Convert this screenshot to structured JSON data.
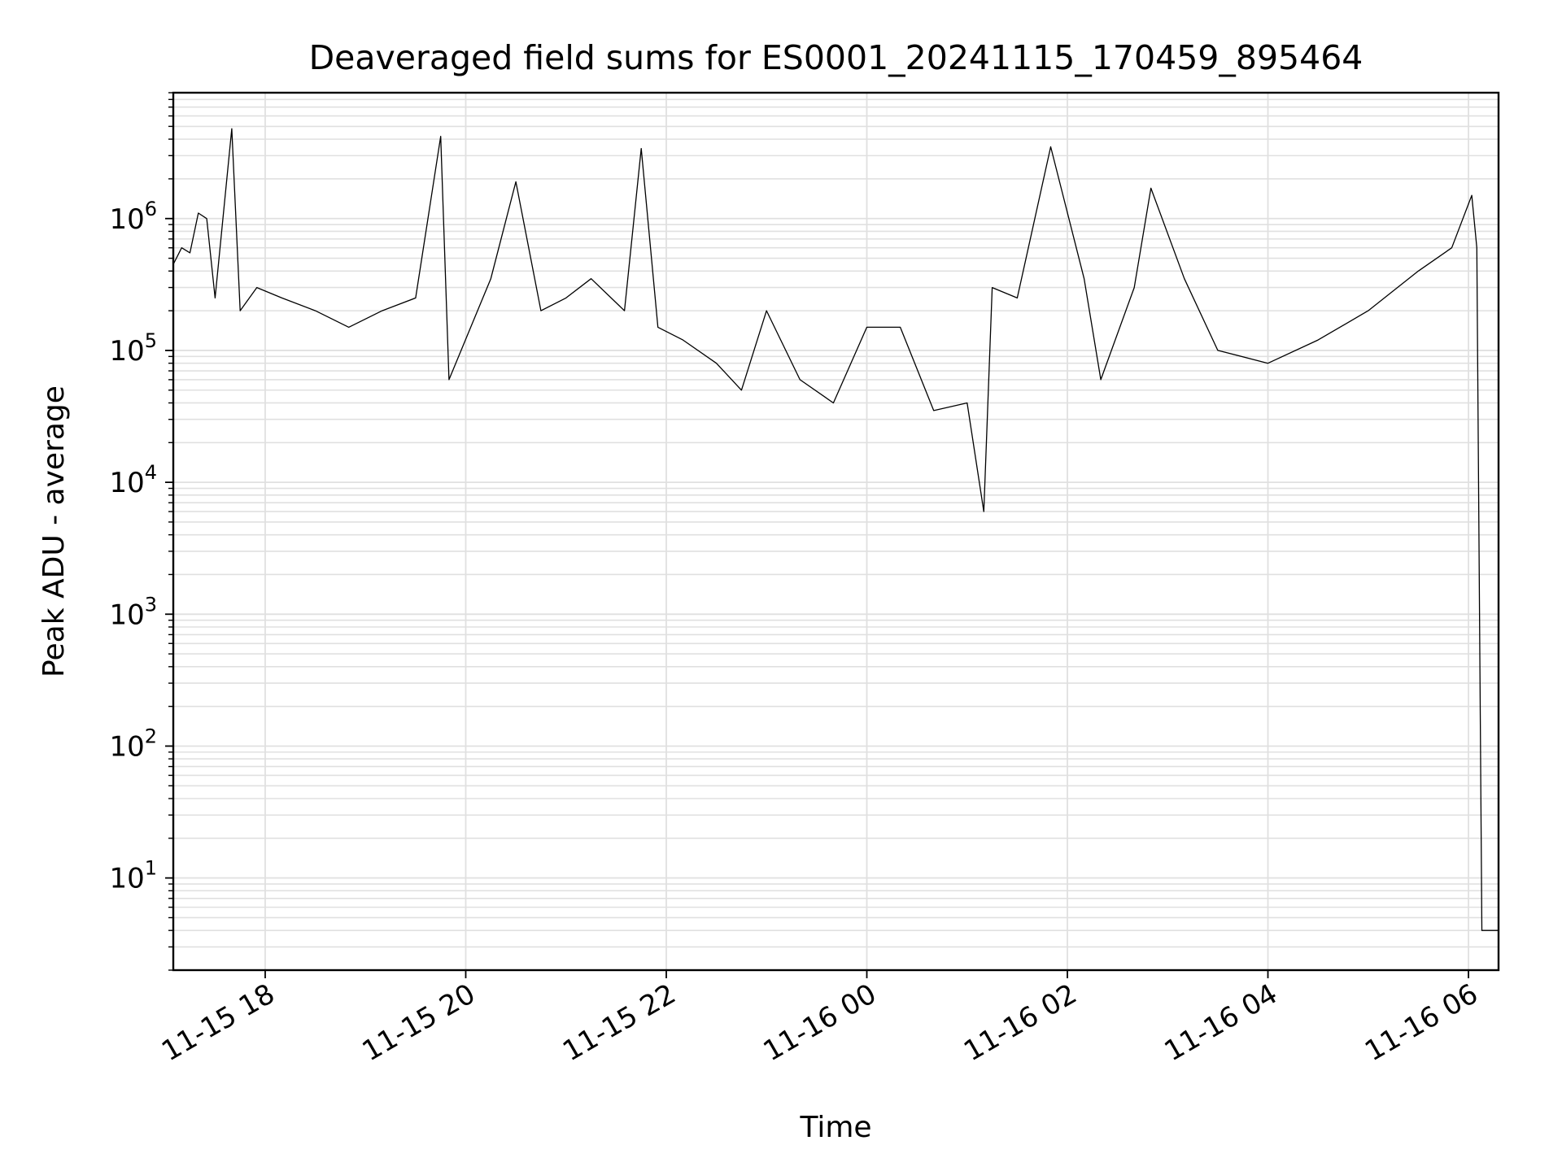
{
  "chart_data": {
    "type": "line",
    "title": "Deaveraged field sums for ES0001_20241115_170459_895464",
    "xlabel": "Time",
    "ylabel": "Peak ADU - average",
    "yscale": "log",
    "ylim": [
      2,
      9000000
    ],
    "xlim": [
      "2024-11-15 17:05",
      "2024-11-16 06:18"
    ],
    "grid": true,
    "grid_minor": true,
    "line_color": "#000000",
    "grid_color": "#e0e0e0",
    "x_ticks": [
      {
        "value": "2024-11-15 18:00",
        "label": "11-15 18"
      },
      {
        "value": "2024-11-15 20:00",
        "label": "11-15 20"
      },
      {
        "value": "2024-11-15 22:00",
        "label": "11-15 22"
      },
      {
        "value": "2024-11-16 00:00",
        "label": "11-16 00"
      },
      {
        "value": "2024-11-16 02:00",
        "label": "11-16 02"
      },
      {
        "value": "2024-11-16 04:00",
        "label": "11-16 04"
      },
      {
        "value": "2024-11-16 06:00",
        "label": "11-16 06"
      }
    ],
    "y_ticks": [
      {
        "value": 10,
        "base": "10",
        "exp": "1"
      },
      {
        "value": 100,
        "base": "10",
        "exp": "2"
      },
      {
        "value": 1000,
        "base": "10",
        "exp": "3"
      },
      {
        "value": 10000,
        "base": "10",
        "exp": "4"
      },
      {
        "value": 100000,
        "base": "10",
        "exp": "5"
      },
      {
        "value": 1000000,
        "base": "10",
        "exp": "6"
      }
    ],
    "series": [
      {
        "points": [
          [
            "2024-11-15 17:05",
            450000
          ],
          [
            "2024-11-15 17:10",
            600000
          ],
          [
            "2024-11-15 17:15",
            550000
          ],
          [
            "2024-11-15 17:20",
            1100000
          ],
          [
            "2024-11-15 17:25",
            1000000
          ],
          [
            "2024-11-15 17:30",
            250000
          ],
          [
            "2024-11-15 17:40",
            4800000
          ],
          [
            "2024-11-15 17:45",
            200000
          ],
          [
            "2024-11-15 17:55",
            300000
          ],
          [
            "2024-11-15 18:10",
            250000
          ],
          [
            "2024-11-15 18:30",
            200000
          ],
          [
            "2024-11-15 18:50",
            150000
          ],
          [
            "2024-11-15 19:10",
            200000
          ],
          [
            "2024-11-15 19:30",
            250000
          ],
          [
            "2024-11-15 19:45",
            4200000
          ],
          [
            "2024-11-15 19:50",
            60000
          ],
          [
            "2024-11-15 20:15",
            350000
          ],
          [
            "2024-11-15 20:30",
            1900000
          ],
          [
            "2024-11-15 20:45",
            200000
          ],
          [
            "2024-11-15 21:00",
            250000
          ],
          [
            "2024-11-15 21:15",
            350000
          ],
          [
            "2024-11-15 21:35",
            200000
          ],
          [
            "2024-11-15 21:45",
            3400000
          ],
          [
            "2024-11-15 21:55",
            150000
          ],
          [
            "2024-11-15 22:10",
            120000
          ],
          [
            "2024-11-15 22:30",
            80000
          ],
          [
            "2024-11-15 22:45",
            50000
          ],
          [
            "2024-11-15 23:00",
            200000
          ],
          [
            "2024-11-15 23:20",
            60000
          ],
          [
            "2024-11-15 23:40",
            40000
          ],
          [
            "2024-11-16 00:00",
            150000
          ],
          [
            "2024-11-16 00:20",
            150000
          ],
          [
            "2024-11-16 00:40",
            35000
          ],
          [
            "2024-11-16 01:00",
            40000
          ],
          [
            "2024-11-16 01:10",
            6000
          ],
          [
            "2024-11-16 01:15",
            300000
          ],
          [
            "2024-11-16 01:30",
            250000
          ],
          [
            "2024-11-16 01:50",
            3500000
          ],
          [
            "2024-11-16 02:10",
            350000
          ],
          [
            "2024-11-16 02:20",
            60000
          ],
          [
            "2024-11-16 02:40",
            300000
          ],
          [
            "2024-11-16 02:50",
            1700000
          ],
          [
            "2024-11-16 03:10",
            350000
          ],
          [
            "2024-11-16 03:30",
            100000
          ],
          [
            "2024-11-16 04:00",
            80000
          ],
          [
            "2024-11-16 04:30",
            120000
          ],
          [
            "2024-11-16 05:00",
            200000
          ],
          [
            "2024-11-16 05:30",
            400000
          ],
          [
            "2024-11-16 05:50",
            600000
          ],
          [
            "2024-11-16 06:02",
            1500000
          ],
          [
            "2024-11-16 06:05",
            600000
          ],
          [
            "2024-11-16 06:08",
            4
          ],
          [
            "2024-11-16 06:18",
            4
          ]
        ]
      }
    ]
  }
}
